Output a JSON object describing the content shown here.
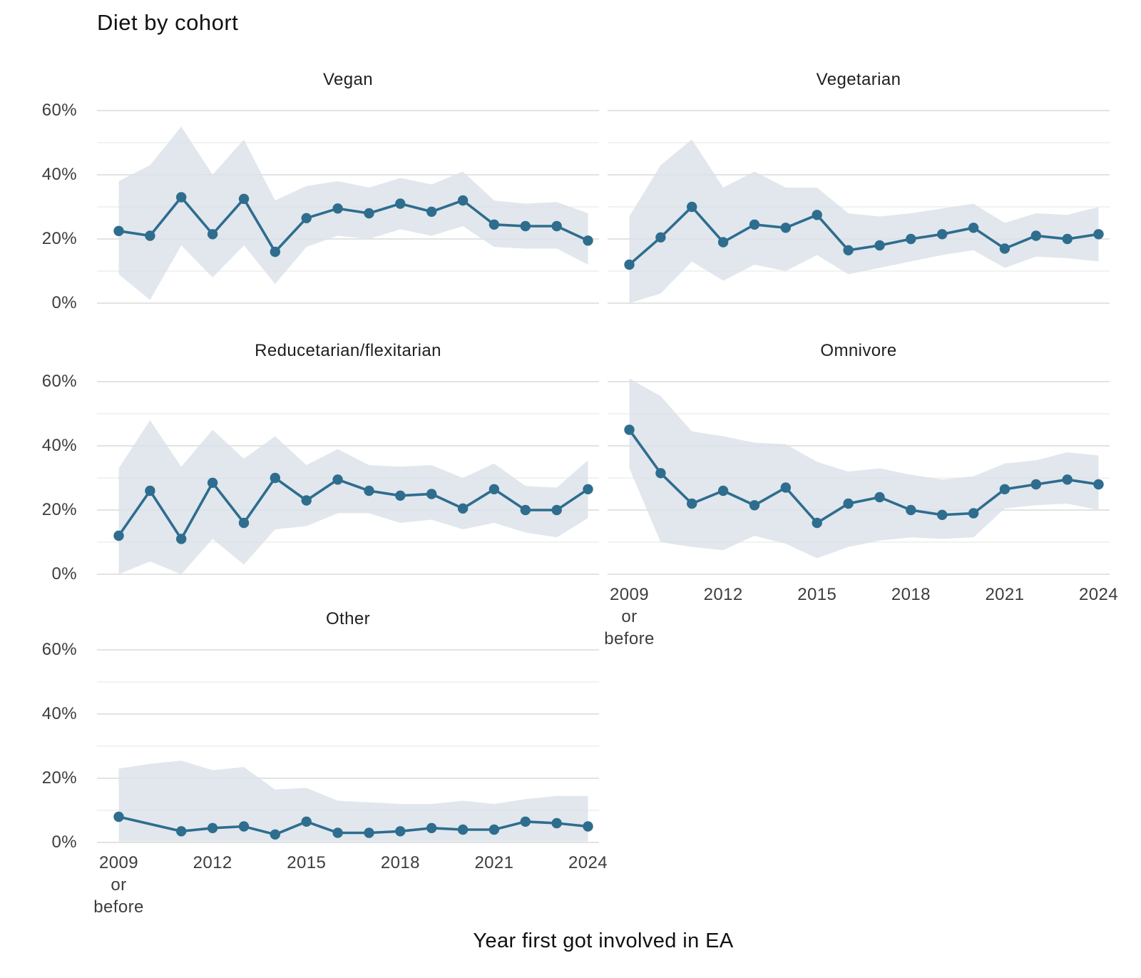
{
  "title": "Diet by cohort",
  "caption": "Year first got involved in EA",
  "colors": {
    "line": "#2e6d8e",
    "point": "#2e6d8e",
    "ribbon": "#d9e1e8",
    "grid_major": "#e3e3e3",
    "grid_minor": "#f0f0f0",
    "tick_text": "#3d3d3d",
    "facet_text": "#1f1f1f",
    "background": "#ffffff"
  },
  "axes": {
    "ylim": [
      0,
      62
    ],
    "y_major_ticks": [
      {
        "label": "60%",
        "value": 60
      },
      {
        "label": "40%",
        "value": 40
      },
      {
        "label": "20%",
        "value": 20
      },
      {
        "label": "0%",
        "value": 0
      }
    ],
    "y_minor_values": [
      50,
      30,
      10
    ],
    "x_ticks": [
      {
        "index": 0,
        "label_lines": [
          "2009",
          "or",
          "before"
        ]
      },
      {
        "index": 3,
        "label_lines": [
          "2012"
        ]
      },
      {
        "index": 6,
        "label_lines": [
          "2015"
        ]
      },
      {
        "index": 9,
        "label_lines": [
          "2018"
        ]
      },
      {
        "index": 12,
        "label_lines": [
          "2021"
        ]
      },
      {
        "index": 15,
        "label_lines": [
          "2024"
        ]
      }
    ],
    "grid": "on",
    "legend": "none"
  },
  "chart_data": [
    {
      "type": "line",
      "title": "Vegan",
      "x": [
        "2009 or before",
        "2010",
        "2011",
        "2012",
        "2013",
        "2014",
        "2015",
        "2016",
        "2017",
        "2018",
        "2019",
        "2020",
        "2021",
        "2022",
        "2023",
        "2024"
      ],
      "values": [
        22.5,
        21,
        33,
        21.5,
        32.5,
        16,
        26.5,
        29.5,
        28,
        31,
        28.5,
        32,
        24.5,
        24,
        24,
        19.5
      ],
      "ci_lower": [
        9,
        1,
        18,
        8,
        18,
        6,
        17.5,
        21,
        20,
        23,
        21,
        24,
        17.5,
        17,
        17,
        12
      ],
      "ci_upper": [
        38,
        43,
        55,
        40,
        51,
        32,
        36.5,
        38,
        36,
        39,
        37,
        41,
        32,
        31,
        31.5,
        28
      ]
    },
    {
      "type": "line",
      "title": "Vegetarian",
      "x": [
        "2009 or before",
        "2010",
        "2011",
        "2012",
        "2013",
        "2014",
        "2015",
        "2016",
        "2017",
        "2018",
        "2019",
        "2020",
        "2021",
        "2022",
        "2023",
        "2024"
      ],
      "values": [
        12,
        20.5,
        30,
        19,
        24.5,
        23.5,
        27.5,
        16.5,
        18,
        20,
        21.5,
        23.5,
        17,
        21,
        20,
        21.5
      ],
      "ci_lower": [
        0,
        3,
        13,
        7,
        12,
        10,
        15,
        9,
        11,
        13,
        15,
        16.5,
        11,
        14.5,
        14,
        13
      ],
      "ci_upper": [
        27,
        43,
        51,
        36,
        41,
        36,
        36,
        28,
        27,
        28,
        29.5,
        31,
        25,
        28,
        27.5,
        30
      ]
    },
    {
      "type": "line",
      "title": "Reducetarian/flexitarian",
      "x": [
        "2009 or before",
        "2010",
        "2011",
        "2012",
        "2013",
        "2014",
        "2015",
        "2016",
        "2017",
        "2018",
        "2019",
        "2020",
        "2021",
        "2022",
        "2023",
        "2024"
      ],
      "values": [
        12,
        26,
        11,
        28.5,
        16,
        30,
        23,
        29.5,
        26,
        24.5,
        25,
        20.5,
        26.5,
        20,
        20,
        26.5
      ],
      "ci_lower": [
        0,
        4,
        0,
        11,
        3,
        14,
        15,
        19,
        19,
        16,
        17,
        14,
        16,
        13,
        11.5,
        17.5
      ],
      "ci_upper": [
        33,
        48,
        33.5,
        45,
        36,
        43,
        34,
        39,
        34,
        33.5,
        34,
        30,
        34.5,
        27.5,
        27,
        35.5
      ]
    },
    {
      "type": "line",
      "title": "Omnivore",
      "x": [
        "2009 or before",
        "2010",
        "2011",
        "2012",
        "2013",
        "2014",
        "2015",
        "2016",
        "2017",
        "2018",
        "2019",
        "2020",
        "2021",
        "2022",
        "2023",
        "2024"
      ],
      "values": [
        45,
        31.5,
        22,
        26,
        21.5,
        27,
        16,
        22,
        24,
        20,
        18.5,
        19,
        26.5,
        28,
        29.5,
        28
      ],
      "ci_lower": [
        33,
        10,
        8.5,
        7.5,
        12,
        9.5,
        5,
        8.5,
        10.5,
        11.5,
        11,
        11.5,
        20.5,
        21.5,
        22,
        20
      ],
      "ci_upper": [
        61,
        55.5,
        44.5,
        43,
        41,
        40.5,
        35,
        32,
        33,
        31,
        29.5,
        30.5,
        34.5,
        35.5,
        38,
        37
      ]
    },
    {
      "type": "line",
      "title": "Other",
      "x": [
        "2009 or before",
        "2010",
        "2011",
        "2012",
        "2013",
        "2014",
        "2015",
        "2016",
        "2017",
        "2018",
        "2019",
        "2020",
        "2021",
        "2022",
        "2023",
        "2024"
      ],
      "values": [
        8,
        null,
        3.5,
        4.5,
        5,
        2.5,
        6.5,
        3,
        3,
        3.5,
        4.5,
        4,
        4,
        6.5,
        6,
        5
      ],
      "ci_lower": [
        0.3,
        0.3,
        0.3,
        0.3,
        0.3,
        0.3,
        0.3,
        0.3,
        0.3,
        0.3,
        0.3,
        0.3,
        0.3,
        0.3,
        0.3,
        0.3
      ],
      "ci_upper": [
        23,
        24.5,
        25.5,
        22.5,
        23.5,
        16.5,
        17,
        13,
        12.5,
        12,
        12,
        13,
        12,
        13.5,
        14.5,
        14.5
      ]
    }
  ]
}
